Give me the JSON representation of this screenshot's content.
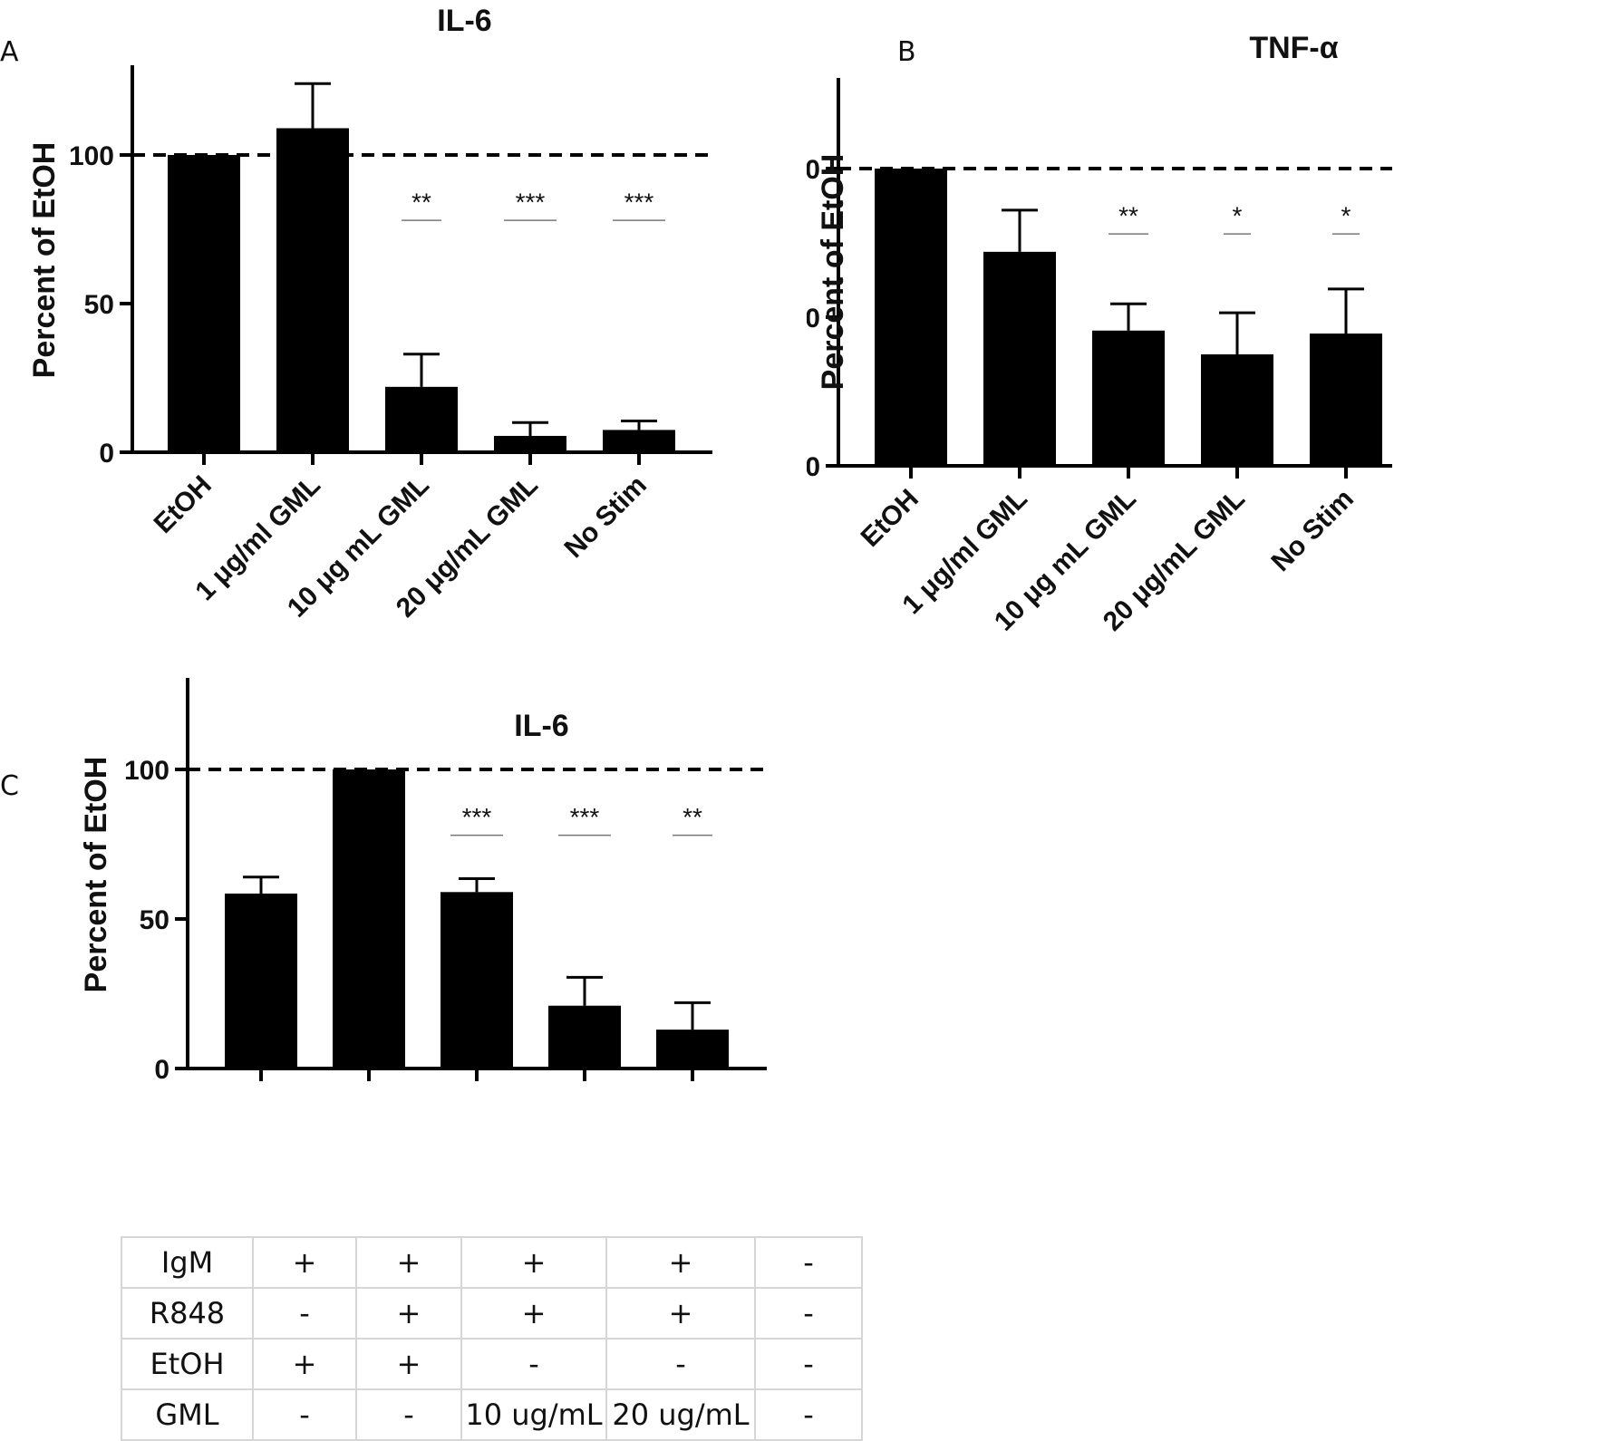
{
  "panels": [
    {
      "letter": "A",
      "title": "IL-6",
      "chart_data": {
        "type": "bar",
        "title": "IL-6",
        "ylabel": "Percent of EtOH",
        "ylim": [
          0,
          130
        ],
        "yticks": [
          0,
          50,
          100
        ],
        "reference_line": 100,
        "categories": [
          "EtOH",
          "1 μg/ml GML",
          "10 μg mL GML",
          "20 μg/mL GML",
          "No Stim"
        ],
        "values": [
          100,
          109,
          22,
          5.5,
          7.5
        ],
        "errors": [
          0,
          15,
          11,
          4.5,
          3
        ],
        "significance": [
          "",
          "",
          "**",
          "***",
          "***"
        ]
      }
    },
    {
      "letter": "B",
      "title": "TNF-α",
      "chart_data": {
        "type": "bar",
        "title": "TNF-α",
        "ylabel": "Percent of EtOH",
        "ylim": [
          0,
          130
        ],
        "yticks": [
          0,
          50,
          100
        ],
        "reference_line": 100,
        "categories": [
          "EtOH",
          "1 μg/ml GML",
          "10 μg mL GML",
          "20 μg/mL GML",
          "No Stim"
        ],
        "values": [
          100,
          72,
          45.5,
          37.5,
          44.5
        ],
        "errors": [
          0,
          14,
          9,
          14,
          15
        ],
        "significance": [
          "",
          "",
          "**",
          "*",
          "*"
        ]
      }
    },
    {
      "letter": "C",
      "title": "IL-6",
      "chart_data": {
        "type": "bar",
        "title": "IL-6",
        "ylabel": "Percent of  EtOH",
        "ylim": [
          0,
          130
        ],
        "yticks": [
          0,
          50,
          100
        ],
        "reference_line": 100,
        "categories": [
          "",
          "",
          "",
          "",
          ""
        ],
        "values": [
          58.5,
          100,
          59,
          21,
          13
        ],
        "errors": [
          5.5,
          0,
          4.5,
          9.5,
          9
        ],
        "significance": [
          "",
          "",
          "***",
          "***",
          "**"
        ]
      }
    }
  ],
  "condition_table": {
    "rows": [
      {
        "label": "IgM",
        "cells": [
          "+",
          "+",
          "+",
          "+",
          "-"
        ]
      },
      {
        "label": "R848",
        "cells": [
          "-",
          "+",
          "+",
          "+",
          "-"
        ]
      },
      {
        "label": "EtOH",
        "cells": [
          "+",
          "+",
          "-",
          "-",
          "-"
        ]
      },
      {
        "label": "GML",
        "cells": [
          "-",
          "-",
          "10 ug/mL",
          "20 ug/mL",
          "-"
        ]
      }
    ]
  }
}
